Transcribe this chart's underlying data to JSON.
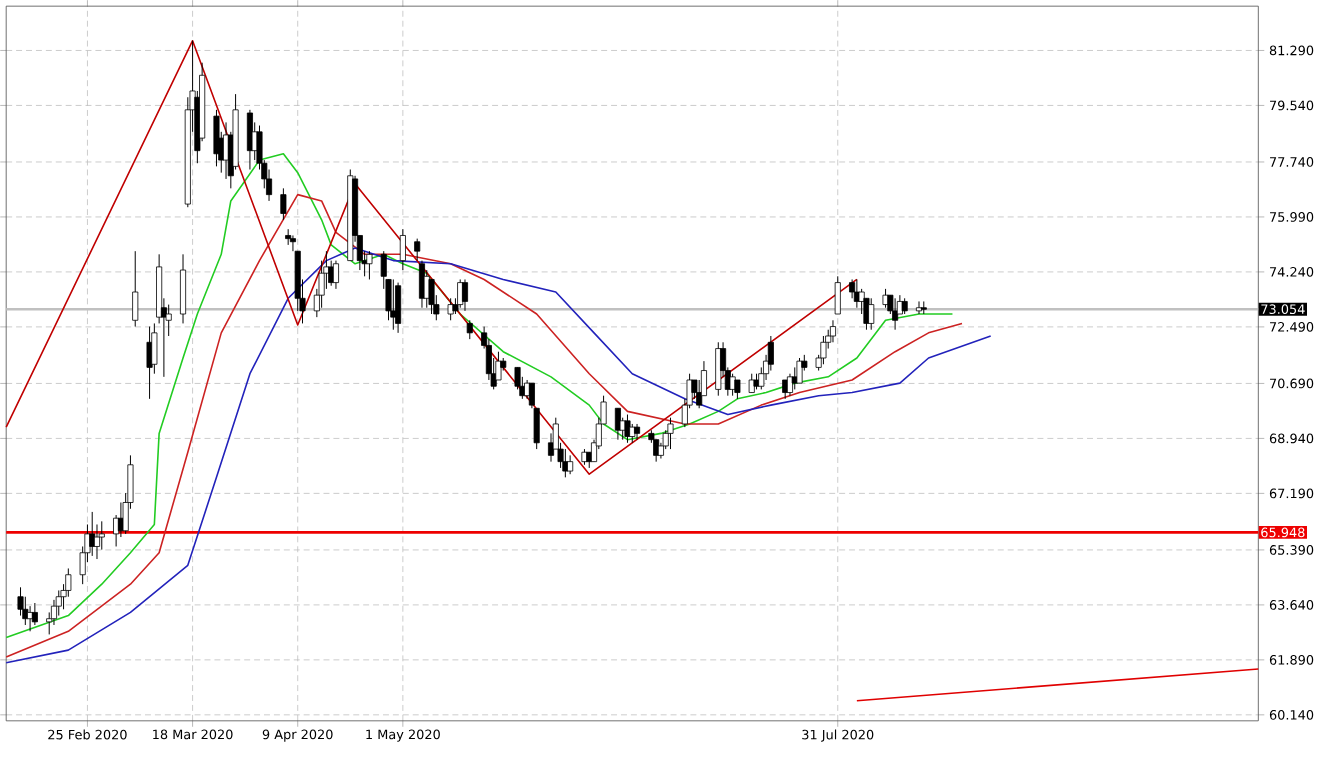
{
  "chart_data": {
    "type": "candlestick",
    "color": "#000000",
    "x": [
      "2020-02-11",
      "2020-02-12",
      "2020-02-13",
      "2020-02-14",
      "2020-02-17",
      "2020-02-18",
      "2020-02-19",
      "2020-02-20",
      "2020-02-21",
      "2020-02-24",
      "2020-02-25",
      "2020-02-26",
      "2020-02-27",
      "2020-02-28",
      "2020-03-02",
      "2020-03-03",
      "2020-03-04",
      "2020-03-05",
      "2020-03-06",
      "2020-03-09",
      "2020-03-10",
      "2020-03-11",
      "2020-03-12",
      "2020-03-13",
      "2020-03-16",
      "2020-03-17",
      "2020-03-18",
      "2020-03-19",
      "2020-03-20",
      "2020-03-23",
      "2020-03-24",
      "2020-03-25",
      "2020-03-26",
      "2020-03-27",
      "2020-03-30",
      "2020-03-31",
      "2020-04-01",
      "2020-04-02",
      "2020-04-03",
      "2020-04-06",
      "2020-04-07",
      "2020-04-08",
      "2020-04-09",
      "2020-04-10",
      "2020-04-13",
      "2020-04-14",
      "2020-04-15",
      "2020-04-16",
      "2020-04-17",
      "2020-04-20",
      "2020-04-21",
      "2020-04-22",
      "2020-04-23",
      "2020-04-24",
      "2020-04-27",
      "2020-04-28",
      "2020-04-29",
      "2020-04-30",
      "2020-05-01",
      "2020-05-04",
      "2020-05-05",
      "2020-05-06",
      "2020-05-07",
      "2020-05-08",
      "2020-05-11",
      "2020-05-12",
      "2020-05-13",
      "2020-05-14",
      "2020-05-15",
      "2020-05-18",
      "2020-05-19",
      "2020-05-20",
      "2020-05-21",
      "2020-05-22",
      "2020-05-25",
      "2020-05-26",
      "2020-05-27",
      "2020-05-28",
      "2020-05-29",
      "2020-06-01",
      "2020-06-02",
      "2020-06-03",
      "2020-06-04",
      "2020-06-05",
      "2020-06-08",
      "2020-06-09",
      "2020-06-10",
      "2020-06-11",
      "2020-06-12",
      "2020-06-15",
      "2020-06-16",
      "2020-06-17",
      "2020-06-18",
      "2020-06-19",
      "2020-06-22",
      "2020-06-23",
      "2020-06-24",
      "2020-06-25",
      "2020-06-26",
      "2020-06-29",
      "2020-06-30",
      "2020-07-01",
      "2020-07-02",
      "2020-07-03",
      "2020-07-06",
      "2020-07-07",
      "2020-07-08",
      "2020-07-09",
      "2020-07-10",
      "2020-07-13",
      "2020-07-14",
      "2020-07-15",
      "2020-07-16",
      "2020-07-17",
      "2020-07-20",
      "2020-07-21",
      "2020-07-22",
      "2020-07-23",
      "2020-07-24",
      "2020-07-27",
      "2020-07-28",
      "2020-07-29",
      "2020-07-30",
      "2020-07-31",
      "2020-08-03",
      "2020-08-04",
      "2020-08-05",
      "2020-08-06",
      "2020-08-07",
      "2020-08-10",
      "2020-08-11",
      "2020-08-12",
      "2020-08-13",
      "2020-08-14",
      "2020-08-17",
      "2020-08-18"
    ],
    "ohlc": [
      [
        63.9,
        64.2,
        63.3,
        63.5
      ],
      [
        63.5,
        63.9,
        63.0,
        63.2
      ],
      [
        63.2,
        63.6,
        62.8,
        63.4
      ],
      [
        63.4,
        63.7,
        63.0,
        63.1
      ],
      [
        63.1,
        63.4,
        62.7,
        63.2
      ],
      [
        63.2,
        63.8,
        63.0,
        63.6
      ],
      [
        63.6,
        64.1,
        63.3,
        63.9
      ],
      [
        63.9,
        64.3,
        63.5,
        64.1
      ],
      [
        64.1,
        64.8,
        63.9,
        64.6
      ],
      [
        64.6,
        65.5,
        64.3,
        65.3
      ],
      [
        65.3,
        66.2,
        65.0,
        65.9
      ],
      [
        65.9,
        66.6,
        65.2,
        65.5
      ],
      [
        65.5,
        66.2,
        65.1,
        65.8
      ],
      [
        65.8,
        66.3,
        65.4,
        65.9
      ],
      [
        65.9,
        66.5,
        65.5,
        66.4
      ],
      [
        66.4,
        66.9,
        65.8,
        66.0
      ],
      [
        66.0,
        67.2,
        65.9,
        66.9
      ],
      [
        66.9,
        68.4,
        66.7,
        68.1
      ],
      [
        72.7,
        74.9,
        72.5,
        73.6
      ],
      [
        72.0,
        72.5,
        70.2,
        71.2
      ],
      [
        71.3,
        72.6,
        71.0,
        72.3
      ],
      [
        72.8,
        74.8,
        72.6,
        74.4
      ],
      [
        73.1,
        73.4,
        70.9,
        72.8
      ],
      [
        72.7,
        73.2,
        72.2,
        72.9
      ],
      [
        72.9,
        74.8,
        72.6,
        74.3
      ],
      [
        76.4,
        79.8,
        76.3,
        79.4
      ],
      [
        79.4,
        81.6,
        78.7,
        80.0
      ],
      [
        79.8,
        80.0,
        77.7,
        78.1
      ],
      [
        78.5,
        80.9,
        78.4,
        80.5
      ],
      [
        79.2,
        79.4,
        77.6,
        78.0
      ],
      [
        78.5,
        78.7,
        77.4,
        77.8
      ],
      [
        77.8,
        79.0,
        77.2,
        78.6
      ],
      [
        78.6,
        78.7,
        76.9,
        77.3
      ],
      [
        77.6,
        79.9,
        77.5,
        79.4
      ],
      [
        79.3,
        79.4,
        77.5,
        78.1
      ],
      [
        78.1,
        79.0,
        77.8,
        78.7
      ],
      [
        78.7,
        78.9,
        77.5,
        77.7
      ],
      [
        77.7,
        77.8,
        76.9,
        77.2
      ],
      [
        77.2,
        77.5,
        76.5,
        76.7
      ],
      [
        76.7,
        76.9,
        75.9,
        76.1
      ],
      [
        75.4,
        75.6,
        75.1,
        75.3
      ],
      [
        75.3,
        75.4,
        74.9,
        75.2
      ],
      [
        74.9,
        74.9,
        73.0,
        73.4
      ],
      [
        73.4,
        74.0,
        72.6,
        73.0
      ],
      [
        73.0,
        73.7,
        72.8,
        73.5
      ],
      [
        73.5,
        74.6,
        73.1,
        74.2
      ],
      [
        74.2,
        74.9,
        73.7,
        74.4
      ],
      [
        74.4,
        74.6,
        73.8,
        73.9
      ],
      [
        73.9,
        74.6,
        73.7,
        74.5
      ],
      [
        74.6,
        77.5,
        74.6,
        77.3
      ],
      [
        77.2,
        77.3,
        75.2,
        75.4
      ],
      [
        75.4,
        75.4,
        74.3,
        74.6
      ],
      [
        74.6,
        74.9,
        74.1,
        74.5
      ],
      [
        74.5,
        74.9,
        74.0,
        74.8
      ],
      [
        74.8,
        74.9,
        73.7,
        74.1
      ],
      [
        74.0,
        74.0,
        72.7,
        73.0
      ],
      [
        73.0,
        74.0,
        72.4,
        72.8
      ],
      [
        73.8,
        73.9,
        72.3,
        72.6
      ],
      [
        74.6,
        75.6,
        74.3,
        75.4
      ],
      [
        75.2,
        75.3,
        74.6,
        74.9
      ],
      [
        74.5,
        74.6,
        73.1,
        73.4
      ],
      [
        73.4,
        74.3,
        73.1,
        74.1
      ],
      [
        74.0,
        74.0,
        72.9,
        73.2
      ],
      [
        73.2,
        73.5,
        72.7,
        72.9
      ],
      [
        72.9,
        73.4,
        72.7,
        73.2
      ],
      [
        73.2,
        73.4,
        72.9,
        73.0
      ],
      [
        73.2,
        74.0,
        73.1,
        73.9
      ],
      [
        73.9,
        74.0,
        73.0,
        73.3
      ],
      [
        72.6,
        72.7,
        72.1,
        72.3
      ],
      [
        72.3,
        72.5,
        71.8,
        71.9
      ],
      [
        71.9,
        72.1,
        70.8,
        71.0
      ],
      [
        71.0,
        71.5,
        70.5,
        70.6
      ],
      [
        70.8,
        71.7,
        70.8,
        71.4
      ],
      [
        71.4,
        71.5,
        71.1,
        71.2
      ],
      [
        71.2,
        71.2,
        70.5,
        70.6
      ],
      [
        70.6,
        70.9,
        70.2,
        70.3
      ],
      [
        70.3,
        70.8,
        70.2,
        70.7
      ],
      [
        70.7,
        70.7,
        69.9,
        70.0
      ],
      [
        69.9,
        69.9,
        68.6,
        68.8
      ],
      [
        68.8,
        69.1,
        68.2,
        68.4
      ],
      [
        68.6,
        69.6,
        68.6,
        69.4
      ],
      [
        68.6,
        68.8,
        68.0,
        68.2
      ],
      [
        68.2,
        68.6,
        67.7,
        67.9
      ],
      [
        67.9,
        68.4,
        67.8,
        68.2
      ],
      [
        68.2,
        68.6,
        68.1,
        68.5
      ],
      [
        68.5,
        68.5,
        68.0,
        68.2
      ],
      [
        68.2,
        68.9,
        68.2,
        68.8
      ],
      [
        68.7,
        69.6,
        68.6,
        69.4
      ],
      [
        69.4,
        70.3,
        69.4,
        70.1
      ],
      [
        69.9,
        69.9,
        68.9,
        69.2
      ],
      [
        69.2,
        69.6,
        68.9,
        69.5
      ],
      [
        69.5,
        69.7,
        68.8,
        69.0
      ],
      [
        69.0,
        69.4,
        68.8,
        69.3
      ],
      [
        69.3,
        69.4,
        68.9,
        69.1
      ],
      [
        69.1,
        69.2,
        68.8,
        68.9
      ],
      [
        68.9,
        68.9,
        68.2,
        68.4
      ],
      [
        68.4,
        68.8,
        68.3,
        68.7
      ],
      [
        68.7,
        69.2,
        68.6,
        69.1
      ],
      [
        69.1,
        69.6,
        68.6,
        69.4
      ],
      [
        69.4,
        70.2,
        69.3,
        70.0
      ],
      [
        70.0,
        71.0,
        69.9,
        70.8
      ],
      [
        70.8,
        70.8,
        70.2,
        70.4
      ],
      [
        70.4,
        70.8,
        69.9,
        70.0
      ],
      [
        70.3,
        71.4,
        70.3,
        71.1
      ],
      [
        70.5,
        72.0,
        70.3,
        71.8
      ],
      [
        71.8,
        72.0,
        70.9,
        71.1
      ],
      [
        71.1,
        71.2,
        70.3,
        70.5
      ],
      [
        70.5,
        71.0,
        70.3,
        70.9
      ],
      [
        70.8,
        70.8,
        70.2,
        70.4
      ],
      [
        70.4,
        71.0,
        70.4,
        70.8
      ],
      [
        70.8,
        71.0,
        70.5,
        70.6
      ],
      [
        70.6,
        71.2,
        70.5,
        71.0
      ],
      [
        71.0,
        71.6,
        70.8,
        71.4
      ],
      [
        72.0,
        72.2,
        71.1,
        71.3
      ],
      [
        70.8,
        70.8,
        70.2,
        70.4
      ],
      [
        70.4,
        71.0,
        70.3,
        70.9
      ],
      [
        70.9,
        71.2,
        70.5,
        70.7
      ],
      [
        70.7,
        71.5,
        70.7,
        71.4
      ],
      [
        71.4,
        71.6,
        71.1,
        71.2
      ],
      [
        71.2,
        71.6,
        71.1,
        71.5
      ],
      [
        71.5,
        72.2,
        71.3,
        72.0
      ],
      [
        72.0,
        72.4,
        71.8,
        72.2
      ],
      [
        72.2,
        72.7,
        72.0,
        72.5
      ],
      [
        72.9,
        74.1,
        72.9,
        73.9
      ],
      [
        73.9,
        74.0,
        73.4,
        73.6
      ],
      [
        73.6,
        74.0,
        73.1,
        73.3
      ],
      [
        73.3,
        73.7,
        72.9,
        73.6
      ],
      [
        73.4,
        73.4,
        72.4,
        72.6
      ],
      [
        72.6,
        73.4,
        72.4,
        73.2
      ],
      [
        73.2,
        73.7,
        73.1,
        73.5
      ],
      [
        73.5,
        73.5,
        72.9,
        73.0
      ],
      [
        73.0,
        73.4,
        72.4,
        72.7
      ],
      [
        72.9,
        73.5,
        72.9,
        73.3
      ],
      [
        73.3,
        73.4,
        72.9,
        73.0
      ],
      [
        73.0,
        73.3,
        72.9,
        73.1
      ],
      [
        73.1,
        73.3,
        72.9,
        73.05
      ]
    ],
    "series": [
      {
        "type": "line",
        "color": "#22cc22",
        "x": [
          "2020-02-08",
          "2020-02-21",
          "2020-02-28",
          "2020-03-05",
          "2020-03-10",
          "2020-03-11",
          "2020-03-16",
          "2020-03-19",
          "2020-03-24",
          "2020-03-26",
          "2020-04-01",
          "2020-04-06",
          "2020-04-09",
          "2020-04-14",
          "2020-04-16",
          "2020-04-21",
          "2020-04-27",
          "2020-05-01",
          "2020-05-06",
          "2020-05-13",
          "2020-05-22",
          "2020-06-01",
          "2020-06-09",
          "2020-06-12",
          "2020-06-17",
          "2020-06-24",
          "2020-06-30",
          "2020-07-06",
          "2020-07-10",
          "2020-07-16",
          "2020-07-22",
          "2020-07-29",
          "2020-08-04",
          "2020-08-10",
          "2020-08-17",
          "2020-08-24"
        ],
        "values": [
          62.6,
          63.3,
          64.3,
          65.3,
          66.2,
          69.1,
          71.5,
          72.9,
          74.8,
          76.5,
          77.8,
          78.0,
          77.4,
          75.9,
          75.1,
          74.5,
          74.8,
          74.5,
          74.2,
          72.9,
          71.7,
          70.9,
          70.0,
          69.4,
          68.9,
          69.1,
          69.4,
          69.8,
          70.2,
          70.4,
          70.7,
          70.9,
          71.5,
          72.7,
          72.9,
          72.9
        ]
      },
      {
        "type": "line",
        "color": "#cc2222",
        "x": [
          "2020-02-08",
          "2020-02-21",
          "2020-03-05",
          "2020-03-11",
          "2020-03-17",
          "2020-03-24",
          "2020-04-01",
          "2020-04-09",
          "2020-04-14",
          "2020-04-17",
          "2020-04-23",
          "2020-05-01",
          "2020-05-11",
          "2020-05-18",
          "2020-05-29",
          "2020-06-09",
          "2020-06-17",
          "2020-06-29",
          "2020-07-06",
          "2020-07-15",
          "2020-07-23",
          "2020-08-03",
          "2020-08-12",
          "2020-08-19",
          "2020-08-26"
        ],
        "values": [
          61.98,
          62.8,
          64.3,
          65.3,
          68.5,
          72.3,
          74.6,
          76.7,
          76.5,
          75.5,
          74.8,
          74.8,
          74.5,
          74.0,
          72.9,
          71.0,
          69.8,
          69.4,
          69.4,
          70.0,
          70.4,
          70.8,
          71.7,
          72.3,
          72.6
        ]
      },
      {
        "type": "line",
        "color": "#2222bb",
        "x": [
          "2020-02-08",
          "2020-02-21",
          "2020-03-05",
          "2020-03-17",
          "2020-03-23",
          "2020-03-30",
          "2020-04-07",
          "2020-04-15",
          "2020-04-21",
          "2020-04-29",
          "2020-05-11",
          "2020-05-22",
          "2020-06-02",
          "2020-06-10",
          "2020-06-18",
          "2020-06-29",
          "2020-07-08",
          "2020-07-17",
          "2020-07-27",
          "2020-08-03",
          "2020-08-13",
          "2020-08-19",
          "2020-09-01"
        ],
        "values": [
          61.8,
          62.2,
          63.4,
          64.9,
          67.7,
          71.0,
          73.4,
          74.6,
          75.0,
          74.6,
          74.5,
          74.0,
          73.6,
          72.3,
          71.0,
          70.2,
          69.7,
          70.0,
          70.3,
          70.4,
          70.7,
          71.5,
          72.2
        ]
      },
      {
        "type": "line",
        "color": "#c00000",
        "x": [
          "2020-02-08",
          "2020-03-18",
          "2020-04-09",
          "2020-04-21",
          "2020-06-09",
          "2020-08-04"
        ],
        "values": [
          69.3,
          81.6,
          72.55,
          77.05,
          67.8,
          74.0
        ]
      },
      {
        "type": "line",
        "color": "#e00000",
        "x": [
          "2020-08-04",
          "2020-10-27"
        ],
        "values": [
          60.59,
          61.6
        ]
      }
    ],
    "xlim": [
      "2020-02-08",
      "2020-10-27"
    ],
    "ylim": [
      59.95,
      82.7
    ],
    "xticks": [
      {
        "value": "2020-02-25",
        "label": "25 Feb 2020"
      },
      {
        "value": "2020-03-18",
        "label": "18 Mar 2020"
      },
      {
        "value": "2020-04-09",
        "label": "9 Apr 2020"
      },
      {
        "value": "2020-05-01",
        "label": "1 May 2020"
      },
      {
        "value": "2020-07-31",
        "label": "31 Jul 2020"
      }
    ],
    "yticks": [
      {
        "value": 60.14,
        "label": "60.140"
      },
      {
        "value": 61.89,
        "label": "61.890"
      },
      {
        "value": 63.64,
        "label": "63.640"
      },
      {
        "value": 65.39,
        "label": "65.390"
      },
      {
        "value": 67.19,
        "label": "67.190"
      },
      {
        "value": 68.94,
        "label": "68.940"
      },
      {
        "value": 70.69,
        "label": "70.690"
      },
      {
        "value": 72.49,
        "label": "72.490"
      },
      {
        "value": 74.24,
        "label": "74.240"
      },
      {
        "value": 75.99,
        "label": "75.990"
      },
      {
        "value": 77.74,
        "label": "77.740"
      },
      {
        "value": 79.54,
        "label": "79.540"
      },
      {
        "value": 81.29,
        "label": "81.290"
      }
    ],
    "grid": true,
    "ref_lines": [
      {
        "axis": "y",
        "value": 73.054,
        "label": "73.054",
        "color": "#c0c0c0"
      },
      {
        "axis": "y",
        "value": 65.948,
        "label": "65.948",
        "color": "#ee0000"
      }
    ]
  }
}
